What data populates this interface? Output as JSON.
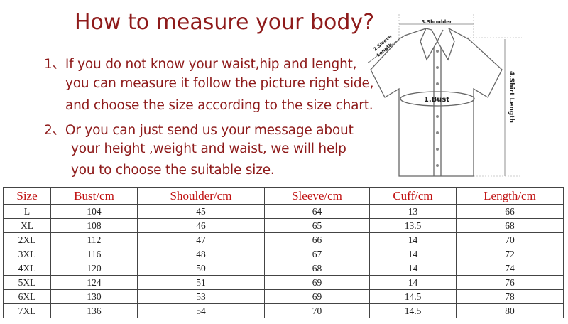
{
  "title": "How to measure your body?",
  "instructions": [
    "1、If you do not know your waist,hip and lenght,",
    "you can measure it follow the picture right side,",
    "and choose the size according to the size chart.",
    "2、Or you can just send us your message about",
    "your height ,weight and waist, we will help",
    "you to choose the suitable size."
  ],
  "diagram": {
    "bust": "1.Bust",
    "sleeve_1": "2.Sleeve",
    "sleeve_2": "Length",
    "shoulder": "3.Shoulder",
    "length": "4.Shirt Length"
  },
  "colors": {
    "title": "#8e1b1b",
    "header": "#c01010"
  },
  "table": {
    "headers": [
      "Size",
      "Bust/cm",
      "Shoulder/cm",
      "Sleeve/cm",
      "Cuff/cm",
      "Length/cm"
    ],
    "rows": [
      [
        "L",
        "104",
        "45",
        "64",
        "13",
        "66"
      ],
      [
        "XL",
        "108",
        "46",
        "65",
        "13.5",
        "68"
      ],
      [
        "2XL",
        "112",
        "47",
        "66",
        "14",
        "70"
      ],
      [
        "3XL",
        "116",
        "48",
        "67",
        "14",
        "72"
      ],
      [
        "4XL",
        "120",
        "50",
        "68",
        "14",
        "74"
      ],
      [
        "5XL",
        "124",
        "51",
        "69",
        "14",
        "76"
      ],
      [
        "6XL",
        "130",
        "53",
        "69",
        "14.5",
        "78"
      ],
      [
        "7XL",
        "136",
        "54",
        "70",
        "14.5",
        "80"
      ]
    ]
  }
}
